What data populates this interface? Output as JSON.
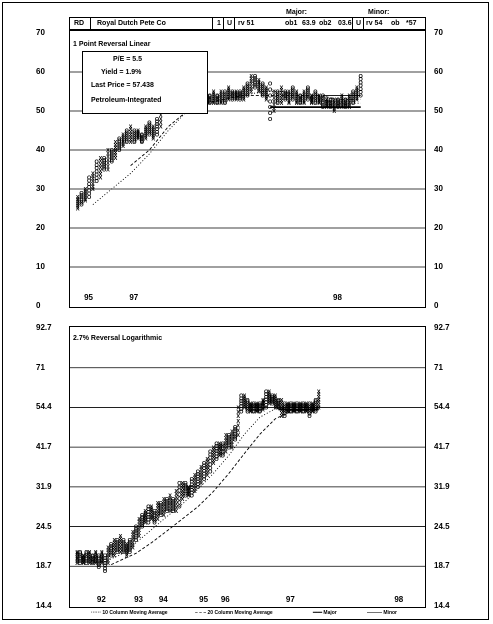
{
  "header": {
    "symbol": "RD",
    "company": "Royal Dutch Pete Co",
    "box_a": "1",
    "box_b": "U",
    "rv_major": "rv 51",
    "ob1": "ob1",
    "ob1_value": "63.9",
    "ob2": "ob2",
    "ob2_value": "03.6",
    "u_minor": "U",
    "rv_minor": "rv 54",
    "ob_minor": "ob",
    "ob_minor_value": "*57",
    "major_label": "Major:",
    "minor_label": "Minor:"
  },
  "info_box": {
    "pe": "P/E = 5.5",
    "yield": "Yield = 1.9%",
    "last_price": "Last Price = 57.438",
    "sector": "Petroleum-Integrated"
  },
  "legend": {
    "ma10": "10 Column Moving Average",
    "ma20": "20 Column Moving Average",
    "major": "Major",
    "minor": "Minor"
  },
  "chart_data": [
    {
      "type": "line",
      "subtitle": "1 Point Reversal Linear",
      "y_ticks": [
        "70",
        "60",
        "50",
        "40",
        "30",
        "20",
        "10",
        "0"
      ],
      "ylim": [
        0,
        70
      ],
      "year_labels": [
        {
          "label": "95",
          "x": 4
        },
        {
          "label": "97",
          "x": 16
        },
        {
          "label": "98",
          "x": 70
        }
      ],
      "xlim": [
        0,
        92
      ],
      "columns": [
        {
          "x": 1,
          "low": 25,
          "high": 28
        },
        {
          "x": 2,
          "low": 26,
          "high": 29
        },
        {
          "x": 3,
          "low": 27,
          "high": 30
        },
        {
          "x": 4,
          "low": 28,
          "high": 33
        },
        {
          "x": 5,
          "low": 30,
          "high": 34
        },
        {
          "x": 6,
          "low": 32,
          "high": 37
        },
        {
          "x": 7,
          "low": 33,
          "high": 38
        },
        {
          "x": 8,
          "low": 35,
          "high": 38
        },
        {
          "x": 9,
          "low": 35,
          "high": 40
        },
        {
          "x": 10,
          "low": 37,
          "high": 40
        },
        {
          "x": 11,
          "low": 38,
          "high": 42
        },
        {
          "x": 12,
          "low": 40,
          "high": 43
        },
        {
          "x": 13,
          "low": 41,
          "high": 44
        },
        {
          "x": 14,
          "low": 42,
          "high": 45
        },
        {
          "x": 15,
          "low": 42,
          "high": 46
        },
        {
          "x": 16,
          "low": 42,
          "high": 45
        },
        {
          "x": 17,
          "low": 43,
          "high": 45
        },
        {
          "x": 18,
          "low": 42,
          "high": 44
        },
        {
          "x": 19,
          "low": 43,
          "high": 46
        },
        {
          "x": 20,
          "low": 44,
          "high": 47
        },
        {
          "x": 21,
          "low": 43,
          "high": 46
        },
        {
          "x": 22,
          "low": 44,
          "high": 48
        },
        {
          "x": 23,
          "low": 46,
          "high": 52
        },
        {
          "x": 24,
          "low": 50,
          "high": 57
        },
        {
          "x": 25,
          "low": 54,
          "high": 58
        },
        {
          "x": 26,
          "low": 54,
          "high": 57
        },
        {
          "x": 27,
          "low": 54,
          "high": 56
        },
        {
          "x": 28,
          "low": 54,
          "high": 56
        },
        {
          "x": 29,
          "low": 54,
          "high": 56
        },
        {
          "x": 30,
          "low": 54,
          "high": 56
        },
        {
          "x": 31,
          "low": 54,
          "high": 56
        },
        {
          "x": 32,
          "low": 53,
          "high": 55
        },
        {
          "x": 33,
          "low": 53,
          "high": 56
        },
        {
          "x": 34,
          "low": 52,
          "high": 56
        },
        {
          "x": 35,
          "low": 51,
          "high": 54
        },
        {
          "x": 36,
          "low": 52,
          "high": 54
        },
        {
          "x": 37,
          "low": 52,
          "high": 55
        },
        {
          "x": 38,
          "low": 52,
          "high": 54
        },
        {
          "x": 39,
          "low": 52,
          "high": 55
        },
        {
          "x": 40,
          "low": 52,
          "high": 55
        },
        {
          "x": 41,
          "low": 53,
          "high": 56
        },
        {
          "x": 42,
          "low": 53,
          "high": 55
        },
        {
          "x": 43,
          "low": 53,
          "high": 55
        },
        {
          "x": 44,
          "low": 53,
          "high": 55
        },
        {
          "x": 45,
          "low": 53,
          "high": 56
        },
        {
          "x": 46,
          "low": 54,
          "high": 57
        },
        {
          "x": 47,
          "low": 55,
          "high": 59
        },
        {
          "x": 48,
          "low": 56,
          "high": 59
        },
        {
          "x": 49,
          "low": 55,
          "high": 58
        },
        {
          "x": 50,
          "low": 54,
          "high": 57
        },
        {
          "x": 51,
          "low": 53,
          "high": 56
        },
        {
          "x": 52,
          "low": 48,
          "high": 57
        },
        {
          "x": 53,
          "low": 50,
          "high": 55
        },
        {
          "x": 54,
          "low": 52,
          "high": 55
        },
        {
          "x": 55,
          "low": 52,
          "high": 56
        },
        {
          "x": 56,
          "low": 53,
          "high": 55
        },
        {
          "x": 57,
          "low": 52,
          "high": 55
        },
        {
          "x": 58,
          "low": 53,
          "high": 56
        },
        {
          "x": 59,
          "low": 52,
          "high": 55
        },
        {
          "x": 60,
          "low": 52,
          "high": 54
        },
        {
          "x": 61,
          "low": 52,
          "high": 55
        },
        {
          "x": 62,
          "low": 53,
          "high": 56
        },
        {
          "x": 63,
          "low": 52,
          "high": 54
        },
        {
          "x": 64,
          "low": 52,
          "high": 55
        },
        {
          "x": 65,
          "low": 52,
          "high": 54
        },
        {
          "x": 66,
          "low": 51,
          "high": 54
        },
        {
          "x": 67,
          "low": 51,
          "high": 53
        },
        {
          "x": 68,
          "low": 51,
          "high": 53
        },
        {
          "x": 69,
          "low": 50,
          "high": 53
        },
        {
          "x": 70,
          "low": 51,
          "high": 53
        },
        {
          "x": 71,
          "low": 51,
          "high": 54
        },
        {
          "x": 72,
          "low": 51,
          "high": 53
        },
        {
          "x": 73,
          "low": 51,
          "high": 54
        },
        {
          "x": 74,
          "low": 52,
          "high": 55
        },
        {
          "x": 75,
          "low": 53,
          "high": 56
        },
        {
          "x": 76,
          "low": 54,
          "high": 59
        }
      ],
      "ma10": [
        [
          5,
          26
        ],
        [
          10,
          30
        ],
        [
          15,
          34
        ],
        [
          20,
          39
        ],
        [
          25,
          45
        ],
        [
          30,
          50
        ],
        [
          35,
          53
        ],
        [
          40,
          54
        ],
        [
          45,
          54
        ],
        [
          50,
          55
        ],
        [
          55,
          55
        ],
        [
          60,
          54
        ],
        [
          65,
          53
        ],
        [
          70,
          52
        ],
        [
          76,
          52
        ]
      ],
      "ma20": [
        [
          15,
          36
        ],
        [
          20,
          40
        ],
        [
          25,
          46
        ],
        [
          30,
          50
        ],
        [
          35,
          52
        ],
        [
          40,
          53
        ],
        [
          45,
          54
        ],
        [
          50,
          54
        ],
        [
          55,
          54
        ],
        [
          60,
          54
        ],
        [
          65,
          54
        ],
        [
          70,
          53
        ],
        [
          76,
          53
        ]
      ],
      "major_line": [
        [
          52,
          51
        ],
        [
          76,
          51
        ]
      ],
      "minor_line": [
        [
          66,
          54
        ],
        [
          76,
          54
        ]
      ]
    },
    {
      "type": "line",
      "subtitle": "2.7% Reversal Logarithmic",
      "y_ticks": [
        "92.7",
        "71",
        "54.4",
        "41.7",
        "31.9",
        "24.5",
        "18.7",
        "14.4"
      ],
      "ylim": [
        14.4,
        92.7
      ],
      "scale": "log",
      "year_labels": [
        {
          "label": "92",
          "x": 9
        },
        {
          "label": "93",
          "x": 21
        },
        {
          "label": "94",
          "x": 29
        },
        {
          "label": "95",
          "x": 42
        },
        {
          "label": "96",
          "x": 49
        },
        {
          "label": "97",
          "x": 70
        },
        {
          "label": "98",
          "x": 105
        }
      ],
      "xlim": [
        0,
        112
      ],
      "columns": [
        {
          "x": 1,
          "low": 19.2,
          "high": 20.7
        },
        {
          "x": 2,
          "low": 19.2,
          "high": 20.7
        },
        {
          "x": 3,
          "low": 19.2,
          "high": 20.2
        },
        {
          "x": 4,
          "low": 19.2,
          "high": 20.7
        },
        {
          "x": 5,
          "low": 19.2,
          "high": 20.7
        },
        {
          "x": 6,
          "low": 19.2,
          "high": 20.2
        },
        {
          "x": 7,
          "low": 19.2,
          "high": 20.7
        },
        {
          "x": 8,
          "low": 18.7,
          "high": 20.2
        },
        {
          "x": 9,
          "low": 19.2,
          "high": 20.7
        },
        {
          "x": 10,
          "low": 18.2,
          "high": 20.2
        },
        {
          "x": 11,
          "low": 19.2,
          "high": 21.3
        },
        {
          "x": 12,
          "low": 20.2,
          "high": 21.8
        },
        {
          "x": 13,
          "low": 20.2,
          "high": 22.4
        },
        {
          "x": 14,
          "low": 20.7,
          "high": 22.4
        },
        {
          "x": 15,
          "low": 20.7,
          "high": 23.0
        },
        {
          "x": 16,
          "low": 20.7,
          "high": 22.4
        },
        {
          "x": 17,
          "low": 20.2,
          "high": 21.8
        },
        {
          "x": 18,
          "low": 20.7,
          "high": 22.4
        },
        {
          "x": 19,
          "low": 21.3,
          "high": 23.6
        },
        {
          "x": 20,
          "low": 22.4,
          "high": 24.5
        },
        {
          "x": 21,
          "low": 23.0,
          "high": 25.8
        },
        {
          "x": 22,
          "low": 24.5,
          "high": 26.5
        },
        {
          "x": 23,
          "low": 25.2,
          "high": 27.2
        },
        {
          "x": 24,
          "low": 25.2,
          "high": 28.0
        },
        {
          "x": 25,
          "low": 25.8,
          "high": 28.0
        },
        {
          "x": 26,
          "low": 25.2,
          "high": 27.2
        },
        {
          "x": 27,
          "low": 25.8,
          "high": 28.7
        },
        {
          "x": 28,
          "low": 26.5,
          "high": 28.7
        },
        {
          "x": 29,
          "low": 26.5,
          "high": 29.5
        },
        {
          "x": 30,
          "low": 27.2,
          "high": 29.5
        },
        {
          "x": 31,
          "low": 27.2,
          "high": 30.2
        },
        {
          "x": 32,
          "low": 27.2,
          "high": 29.5
        },
        {
          "x": 33,
          "low": 27.2,
          "high": 31.1
        },
        {
          "x": 34,
          "low": 28.0,
          "high": 32.8
        },
        {
          "x": 35,
          "low": 29.5,
          "high": 32.8
        },
        {
          "x": 36,
          "low": 30.2,
          "high": 32.8
        },
        {
          "x": 37,
          "low": 30.2,
          "high": 32.0
        },
        {
          "x": 38,
          "low": 30.2,
          "high": 33.7
        },
        {
          "x": 39,
          "low": 31.1,
          "high": 34.6
        },
        {
          "x": 40,
          "low": 32.0,
          "high": 35.5
        },
        {
          "x": 41,
          "low": 32.8,
          "high": 36.5
        },
        {
          "x": 42,
          "low": 33.7,
          "high": 37.5
        },
        {
          "x": 43,
          "low": 34.6,
          "high": 38.5
        },
        {
          "x": 44,
          "low": 35.5,
          "high": 40.6
        },
        {
          "x": 45,
          "low": 37.5,
          "high": 41.7
        },
        {
          "x": 46,
          "low": 38.5,
          "high": 42.8
        },
        {
          "x": 47,
          "low": 39.5,
          "high": 42.8
        },
        {
          "x": 48,
          "low": 39.5,
          "high": 42.8
        },
        {
          "x": 49,
          "low": 40.6,
          "high": 45.2
        },
        {
          "x": 50,
          "low": 41.7,
          "high": 45.2
        },
        {
          "x": 51,
          "low": 41.7,
          "high": 46.4
        },
        {
          "x": 52,
          "low": 43.9,
          "high": 47.7
        },
        {
          "x": 53,
          "low": 45.2,
          "high": 54.4
        },
        {
          "x": 54,
          "low": 52.9,
          "high": 58.9
        },
        {
          "x": 55,
          "low": 54.4,
          "high": 58.9
        },
        {
          "x": 56,
          "low": 52.9,
          "high": 57.3
        },
        {
          "x": 57,
          "low": 52.9,
          "high": 55.9
        },
        {
          "x": 58,
          "low": 52.9,
          "high": 55.9
        },
        {
          "x": 59,
          "low": 52.9,
          "high": 55.9
        },
        {
          "x": 60,
          "low": 52.9,
          "high": 55.9
        },
        {
          "x": 61,
          "low": 53.7,
          "high": 57.3
        },
        {
          "x": 62,
          "low": 54.4,
          "high": 60.5
        },
        {
          "x": 63,
          "low": 55.9,
          "high": 60.5
        },
        {
          "x": 64,
          "low": 55.9,
          "high": 58.9
        },
        {
          "x": 65,
          "low": 54.4,
          "high": 58.9
        },
        {
          "x": 66,
          "low": 54.4,
          "high": 57.3
        },
        {
          "x": 67,
          "low": 51.5,
          "high": 57.3
        },
        {
          "x": 68,
          "low": 51.5,
          "high": 55.9
        },
        {
          "x": 69,
          "low": 52.9,
          "high": 55.9
        },
        {
          "x": 70,
          "low": 52.9,
          "high": 55.9
        },
        {
          "x": 71,
          "low": 52.9,
          "high": 55.9
        },
        {
          "x": 72,
          "low": 52.9,
          "high": 55.9
        },
        {
          "x": 73,
          "low": 52.9,
          "high": 55.9
        },
        {
          "x": 74,
          "low": 52.9,
          "high": 55.9
        },
        {
          "x": 75,
          "low": 52.9,
          "high": 55.9
        },
        {
          "x": 76,
          "low": 51.5,
          "high": 55.9
        },
        {
          "x": 77,
          "low": 52.9,
          "high": 55.9
        },
        {
          "x": 78,
          "low": 52.9,
          "high": 57.3
        },
        {
          "x": 79,
          "low": 54.4,
          "high": 60.5
        }
      ],
      "ma10": [
        [
          5,
          19.2
        ],
        [
          10,
          19.4
        ],
        [
          15,
          20.3
        ],
        [
          20,
          22.0
        ],
        [
          25,
          24.0
        ],
        [
          30,
          26.2
        ],
        [
          35,
          28.5
        ],
        [
          40,
          31.5
        ],
        [
          45,
          35.0
        ],
        [
          50,
          39.5
        ],
        [
          55,
          45.5
        ],
        [
          60,
          51.0
        ],
        [
          65,
          54.0
        ],
        [
          70,
          54.5
        ],
        [
          79,
          54.8
        ]
      ],
      "ma20": [
        [
          12,
          19.0
        ],
        [
          20,
          20.5
        ],
        [
          25,
          22.0
        ],
        [
          30,
          23.8
        ],
        [
          35,
          25.8
        ],
        [
          40,
          28.0
        ],
        [
          45,
          31.0
        ],
        [
          50,
          35.0
        ],
        [
          55,
          40.0
        ],
        [
          60,
          45.5
        ],
        [
          65,
          50.5
        ],
        [
          70,
          53.0
        ],
        [
          79,
          54.4
        ]
      ],
      "major_line": [
        [
          66,
          53.7
        ],
        [
          79,
          53.7
        ]
      ]
    }
  ]
}
